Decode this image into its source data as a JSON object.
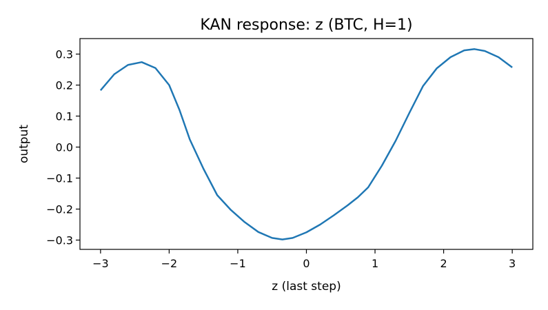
{
  "chart_data": {
    "type": "line",
    "title": "KAN response: z (BTC, H=1)",
    "xlabel": "z (last step)",
    "ylabel": "output",
    "xlim": [
      -3.3,
      3.3
    ],
    "ylim": [
      -0.33,
      0.35
    ],
    "xticks": [
      -3,
      -2,
      -1,
      0,
      1,
      2,
      3
    ],
    "xtick_labels": [
      "−3",
      "−2",
      "−1",
      "0",
      "1",
      "2",
      "3"
    ],
    "yticks": [
      -0.3,
      -0.2,
      -0.1,
      0.0,
      0.1,
      0.2,
      0.3
    ],
    "ytick_labels": [
      "−0.3",
      "−0.2",
      "−0.1",
      "0.0",
      "0.1",
      "0.2",
      "0.3"
    ],
    "grid": false,
    "line_color": "#1f77b4",
    "series": [
      {
        "x": [
          -3.0,
          -2.8,
          -2.6,
          -2.4,
          -2.2,
          -2.0,
          -1.85,
          -1.7,
          -1.5,
          -1.3,
          -1.1,
          -0.9,
          -0.7,
          -0.5,
          -0.35,
          -0.2,
          0.0,
          0.2,
          0.4,
          0.6,
          0.75,
          0.9,
          1.1,
          1.3,
          1.5,
          1.7,
          1.9,
          2.1,
          2.3,
          2.45,
          2.6,
          2.8,
          3.0
        ],
        "y": [
          0.183,
          0.235,
          0.265,
          0.274,
          0.255,
          0.2,
          0.12,
          0.025,
          -0.07,
          -0.155,
          -0.203,
          -0.242,
          -0.274,
          -0.293,
          -0.298,
          -0.293,
          -0.275,
          -0.25,
          -0.22,
          -0.188,
          -0.162,
          -0.13,
          -0.06,
          0.02,
          0.11,
          0.197,
          0.254,
          0.29,
          0.312,
          0.316,
          0.31,
          0.29,
          0.257
        ]
      }
    ]
  }
}
